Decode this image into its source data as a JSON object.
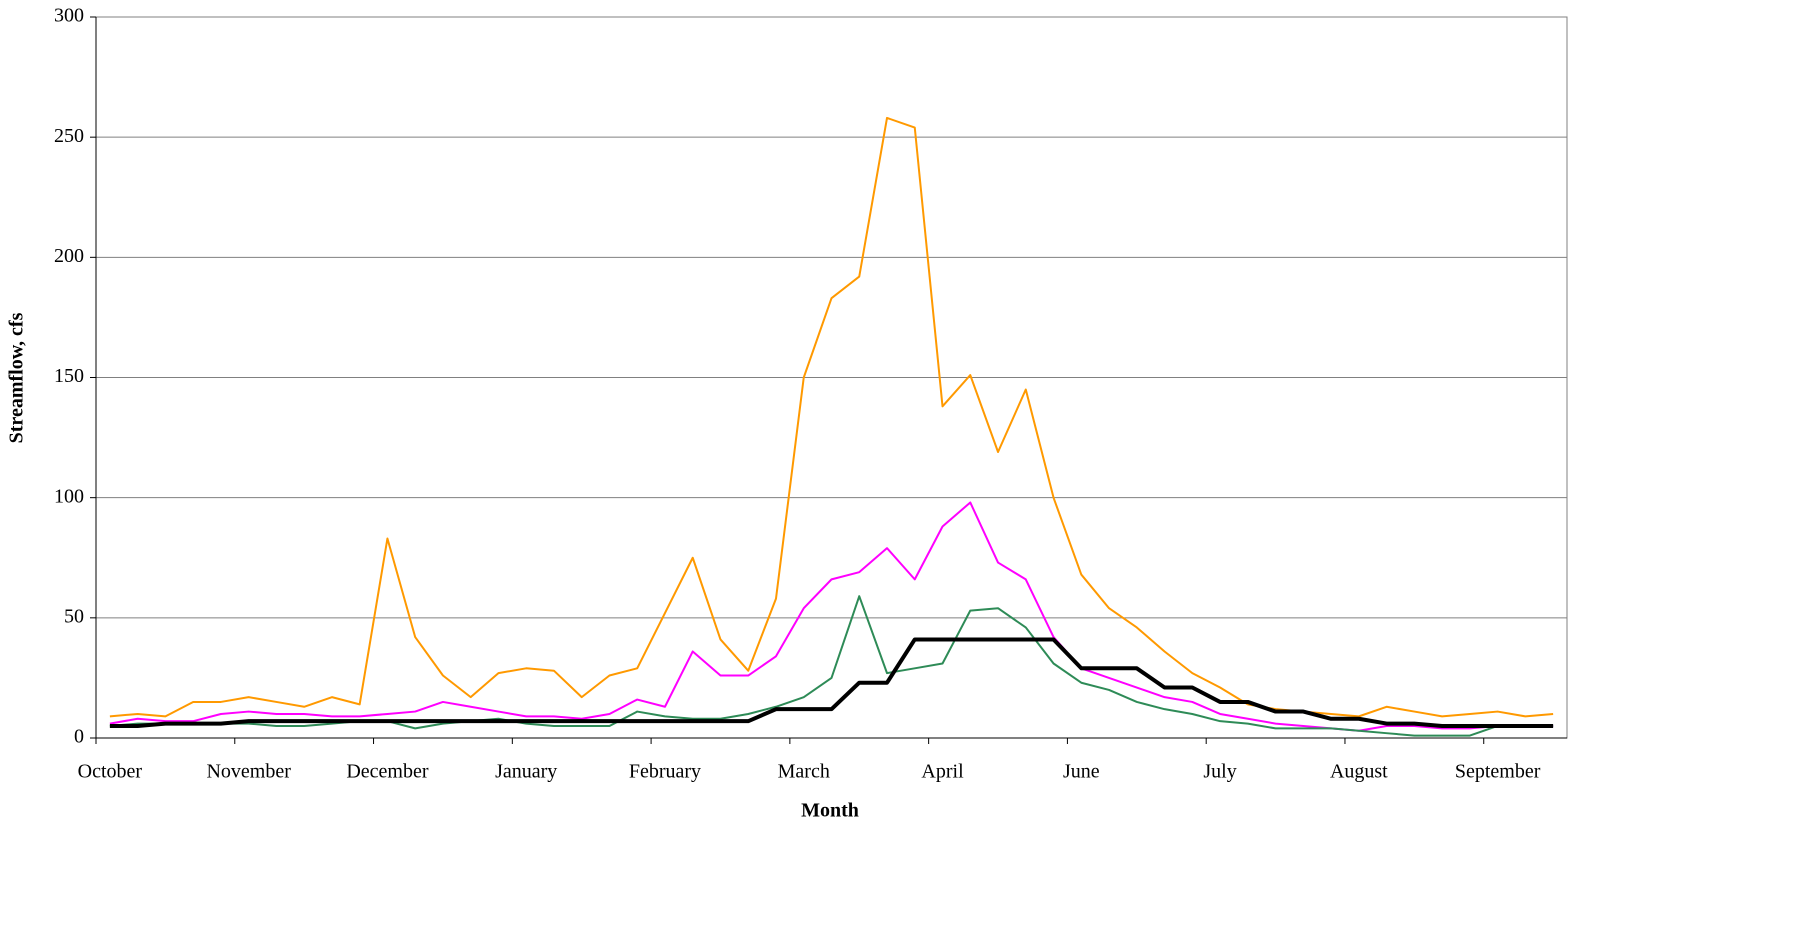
{
  "chart_data": {
    "type": "line",
    "x_label": "Month",
    "y_label": "Streamflow, cfs",
    "categories": [
      "October",
      null,
      null,
      null,
      null,
      "November",
      null,
      null,
      null,
      null,
      "December",
      null,
      null,
      null,
      null,
      "January",
      null,
      null,
      null,
      null,
      "February",
      null,
      null,
      null,
      null,
      "March",
      null,
      null,
      null,
      null,
      "April",
      null,
      null,
      null,
      null,
      "June",
      null,
      null,
      null,
      null,
      "July",
      null,
      null,
      null,
      null,
      "August",
      null,
      null,
      null,
      null,
      "September",
      null,
      null
    ],
    "series": [
      {
        "color": "#ff9900",
        "width": 2,
        "values": [
          9,
          10,
          9,
          15,
          15,
          17,
          15,
          13,
          17,
          14,
          83,
          42,
          26,
          17,
          27,
          29,
          28,
          17,
          26,
          29,
          52,
          75,
          41,
          28,
          58,
          150,
          183,
          192,
          258,
          254,
          138,
          151,
          119,
          145,
          100,
          68,
          54,
          46,
          36,
          27,
          21,
          14,
          12,
          11,
          10,
          9,
          13,
          11,
          9,
          10,
          11,
          9,
          10
        ]
      },
      {
        "color": "#ff00ff",
        "width": 2,
        "values": [
          6,
          8,
          7,
          7,
          10,
          11,
          10,
          10,
          9,
          9,
          10,
          11,
          15,
          13,
          11,
          9,
          9,
          8,
          10,
          16,
          13,
          36,
          26,
          26,
          34,
          54,
          66,
          69,
          79,
          66,
          88,
          98,
          73,
          66,
          42,
          29,
          25,
          21,
          17,
          15,
          10,
          8,
          6,
          5,
          4,
          3,
          5,
          5,
          4,
          4,
          5,
          5,
          5
        ]
      },
      {
        "color": "#2e8b57",
        "width": 2,
        "values": [
          5,
          6,
          6,
          6,
          6,
          6,
          5,
          5,
          6,
          7,
          7,
          4,
          6,
          7,
          8,
          6,
          5,
          5,
          5,
          11,
          9,
          8,
          8,
          10,
          13,
          17,
          25,
          59,
          27,
          29,
          31,
          53,
          54,
          46,
          31,
          23,
          20,
          15,
          12,
          10,
          7,
          6,
          4,
          4,
          4,
          3,
          2,
          1,
          1,
          1,
          5,
          5,
          5
        ]
      },
      {
        "color": "#000000",
        "width": 4,
        "values": [
          5,
          5,
          6,
          6,
          6,
          7,
          7,
          7,
          7,
          7,
          7,
          7,
          7,
          7,
          7,
          7,
          7,
          7,
          7,
          7,
          7,
          7,
          7,
          7,
          12,
          12,
          12,
          23,
          23,
          41,
          41,
          41,
          41,
          41,
          41,
          29,
          29,
          29,
          21,
          21,
          15,
          15,
          11,
          11,
          8,
          8,
          6,
          6,
          5,
          5,
          5,
          5,
          5
        ]
      }
    ],
    "ylim": [
      0,
      300
    ],
    "yticks": [
      0,
      50,
      100,
      150,
      200,
      250,
      300
    ],
    "grid": true
  }
}
